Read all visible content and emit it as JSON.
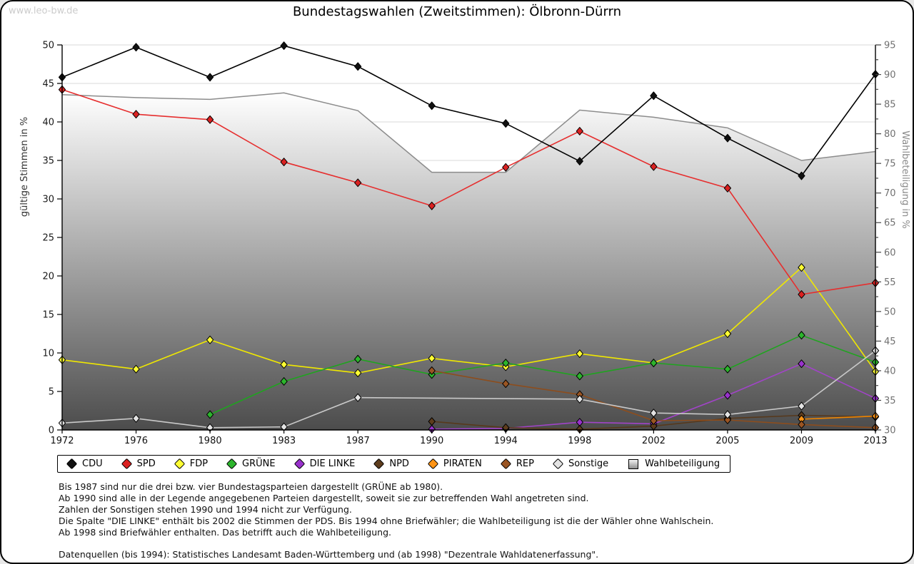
{
  "watermark": "www.leo-bw.de",
  "title": "Bundestagswahlen (Zweitstimmen): Ölbronn-Dürrn",
  "chart_data": {
    "type": "line",
    "x": [
      "1972",
      "1976",
      "1980",
      "1983",
      "1987",
      "1990",
      "1994",
      "1998",
      "2002",
      "2005",
      "2009",
      "2013"
    ],
    "left_axis": {
      "label": "gültige Stimmen in %",
      "min": 0,
      "max": 50,
      "tick_step": 5
    },
    "right_axis": {
      "label": "Wahlbeteiligung in %",
      "min": 30,
      "max": 95,
      "tick_step": 5,
      "minor_step": 2.5
    },
    "grid": "horizontal",
    "legend_position": "bottom",
    "series": [
      {
        "name": "Wahlbeteiligung",
        "axis": "right",
        "style": "area",
        "line_color": "#8c8c8c",
        "area_top": "#ffffff",
        "area_bottom": "#4c4c4c",
        "marker": "square",
        "values": [
          86.6,
          86.1,
          85.8,
          86.9,
          83.9,
          73.5,
          73.5,
          84.0,
          82.8,
          81.0,
          75.5,
          77.0
        ]
      },
      {
        "name": "FDP",
        "axis": "left",
        "style": "line",
        "line_color": "#f0e800",
        "marker_fill": "#ffff33",
        "values": [
          9.1,
          7.9,
          11.7,
          8.5,
          7.4,
          9.3,
          8.2,
          9.9,
          8.7,
          12.5,
          21.1,
          7.6
        ]
      },
      {
        "name": "GRÜNE",
        "axis": "left",
        "style": "line",
        "line_color": "#1fa41f",
        "marker_fill": "#2db52d",
        "values": [
          null,
          null,
          2.0,
          6.3,
          9.2,
          7.2,
          8.7,
          7.0,
          8.7,
          7.9,
          12.3,
          8.8
        ]
      },
      {
        "name": "DIE LINKE",
        "axis": "left",
        "style": "line",
        "line_color": "#a144c8",
        "marker_fill": "#9932cc",
        "values": [
          null,
          null,
          null,
          null,
          null,
          0.1,
          0.2,
          1.0,
          0.8,
          4.5,
          8.6,
          4.1
        ]
      },
      {
        "name": "NPD",
        "axis": "left",
        "style": "line",
        "line_color": "#57391c",
        "marker_fill": "#5e3d1d",
        "values": [
          null,
          null,
          null,
          null,
          null,
          1.1,
          0.3,
          0.1,
          0.5,
          1.5,
          1.9,
          1.7
        ]
      },
      {
        "name": "PIRATEN",
        "axis": "left",
        "style": "line",
        "line_color": "#ef8500",
        "marker_fill": "#ff9415",
        "values": [
          null,
          null,
          null,
          null,
          null,
          null,
          null,
          null,
          null,
          null,
          1.4,
          1.8
        ]
      },
      {
        "name": "REP",
        "axis": "left",
        "style": "line",
        "line_color": "#8d4d1d",
        "marker_fill": "#9a5523",
        "values": [
          null,
          null,
          null,
          null,
          null,
          7.7,
          6.0,
          4.6,
          1.2,
          1.3,
          0.7,
          0.3
        ]
      },
      {
        "name": "Sonstige",
        "axis": "left",
        "style": "line",
        "line_color": "#c9c9c9",
        "marker_fill": "#e3e3e3",
        "values": [
          0.9,
          1.5,
          0.3,
          0.4,
          4.2,
          null,
          null,
          4.0,
          2.2,
          2.0,
          3.1,
          10.3
        ]
      },
      {
        "name": "SPD",
        "axis": "left",
        "style": "line",
        "line_color": "#e62e2e",
        "marker_fill": "#da2121",
        "values": [
          44.2,
          41.0,
          40.3,
          34.8,
          32.1,
          29.1,
          34.1,
          38.8,
          34.2,
          31.4,
          17.6,
          19.1
        ]
      },
      {
        "name": "CDU",
        "axis": "left",
        "style": "line",
        "line_color": "#000000",
        "marker_fill": "#111111",
        "values": [
          45.8,
          49.7,
          45.8,
          49.9,
          47.2,
          42.1,
          39.8,
          34.9,
          43.4,
          37.9,
          33.0,
          46.2
        ]
      }
    ],
    "legend_order": [
      "CDU",
      "SPD",
      "FDP",
      "GRÜNE",
      "DIE LINKE",
      "NPD",
      "PIRATEN",
      "REP",
      "Sonstige",
      "Wahlbeteiligung"
    ]
  },
  "footnotes": [
    "Bis 1987 sind nur die drei bzw. vier Bundestagsparteien dargestellt (GRÜNE ab 1980).",
    "Ab 1990 sind alle in der Legende angegebenen Parteien dargestellt, soweit sie zur betreffenden Wahl angetreten sind.",
    "Zahlen der Sonstigen stehen 1990 und 1994 nicht zur Verfügung.",
    "Die Spalte \"DIE LINKE\" enthält bis 2002 die Stimmen der PDS. Bis 1994 ohne Briefwähler; die Wahlbeteiligung ist die der Wähler ohne Wahlschein.",
    "Ab 1998 sind Briefwähler enthalten. Das betrifft auch die Wahlbeteiligung."
  ],
  "source": "Datenquellen (bis 1994): Statistisches Landesamt Baden-Württemberg und (ab 1998) \"Dezentrale Wahldatenerfassung\"."
}
